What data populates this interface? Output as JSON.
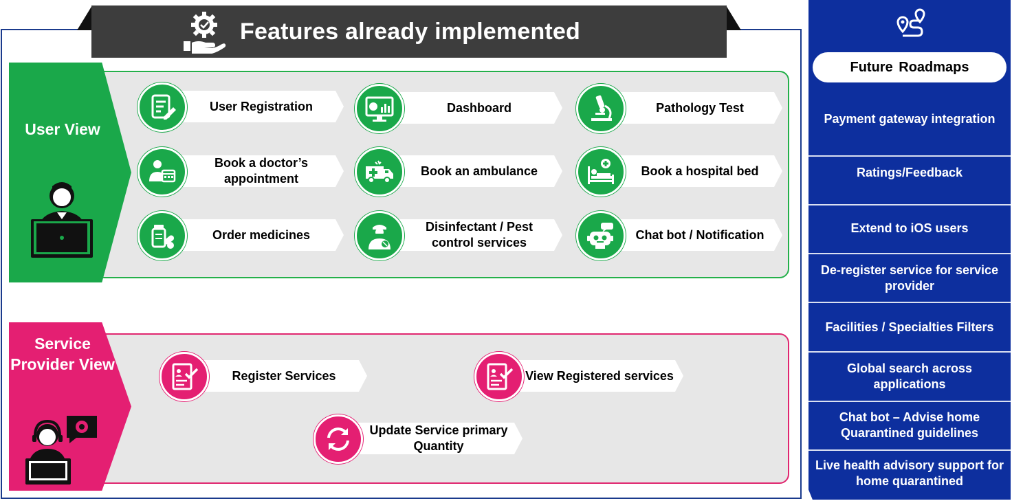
{
  "title": {
    "text": "Features already implemented",
    "icon": "gear-hand-icon"
  },
  "user_view": {
    "label": "User View",
    "accent": "#1aa84a",
    "features": [
      {
        "label": "User Registration",
        "icon": "registration-form-icon"
      },
      {
        "label": "Dashboard",
        "icon": "dashboard-monitor-icon"
      },
      {
        "label": "Pathology Test",
        "icon": "microscope-icon"
      },
      {
        "label": "Book a doctor’s appointment",
        "icon": "doctor-calendar-icon"
      },
      {
        "label": "Book an ambulance",
        "icon": "ambulance-icon"
      },
      {
        "label": "Book a hospital bed",
        "icon": "hospital-bed-icon"
      },
      {
        "label": "Order medicines",
        "icon": "medicines-icon"
      },
      {
        "label": "Disinfectant / Pest control services",
        "icon": "pest-control-worker-icon"
      },
      {
        "label": "Chat bot / Notification",
        "icon": "chatbot-robot-icon"
      }
    ]
  },
  "service_provider_view": {
    "label": "Service Provider View",
    "accent": "#e41f72",
    "features": [
      {
        "label": "Register Services",
        "icon": "document-check-icon"
      },
      {
        "label": "View Registered services",
        "icon": "document-check-icon"
      },
      {
        "label": "Update Service primary Quantity",
        "icon": "refresh-icon"
      }
    ]
  },
  "roadmap": {
    "title": "Future Roadmaps",
    "icon": "route-pin-icon",
    "accent": "#0d2f9e",
    "items": [
      "Payment gateway integration",
      "Ratings/Feedback",
      "Extend to iOS users",
      "De-register service for service provider",
      "Facilities / Specialties Filters",
      "Global search across applications",
      "Chat bot – Advise home Quarantined guidelines",
      "Live health advisory support for home quarantined"
    ]
  }
}
